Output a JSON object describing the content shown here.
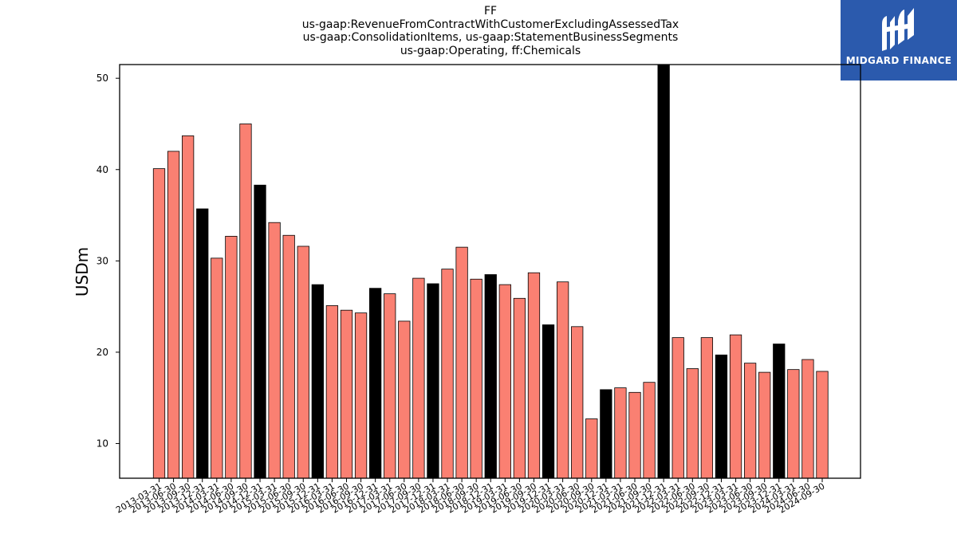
{
  "title_lines": [
    "FF",
    "us-gaap:RevenueFromContractWithCustomerExcludingAssessedTax",
    "us-gaap:ConsolidationItems, us-gaap:StatementBusinessSegments",
    "us-gaap:Operating, ff:Chemicals"
  ],
  "logo": {
    "text": "MIDGARD FINANCE",
    "background": "#2b5aad"
  },
  "colors": {
    "normal_bar": "#fa8072",
    "highlight_bar": "#000000",
    "bar_edge": "#000000"
  },
  "chart_data": {
    "type": "bar",
    "ylabel": "USDm",
    "xlabel": "",
    "ylim": [
      6.2,
      51.5
    ],
    "yticks": [
      10,
      20,
      30,
      40,
      50
    ],
    "grid": false,
    "categories": [
      "2013-03-31",
      "2013-06-30",
      "2013-09-30",
      "2013-12-31",
      "2014-03-31",
      "2014-06-30",
      "2014-09-30",
      "2014-12-31",
      "2015-03-31",
      "2015-06-30",
      "2015-09-30",
      "2015-12-31",
      "2016-03-31",
      "2016-06-30",
      "2016-09-30",
      "2016-12-31",
      "2017-03-31",
      "2017-06-30",
      "2017-09-30",
      "2017-12-31",
      "2018-03-31",
      "2018-06-30",
      "2018-09-30",
      "2018-12-31",
      "2019-03-31",
      "2019-06-30",
      "2019-09-30",
      "2019-12-31",
      "2020-03-31",
      "2020-06-30",
      "2020-09-30",
      "2020-12-31",
      "2021-03-31",
      "2021-06-30",
      "2021-09-30",
      "2021-12-31",
      "2022-03-31",
      "2022-06-30",
      "2022-09-30",
      "2022-12-31",
      "2023-03-31",
      "2023-06-30",
      "2023-09-30",
      "2023-12-31",
      "2024-03-31",
      "2024-06-30",
      "2024-09-30"
    ],
    "values": [
      40.1,
      42.0,
      43.7,
      35.7,
      30.3,
      32.7,
      45.0,
      38.3,
      34.2,
      32.8,
      31.6,
      27.4,
      25.1,
      24.6,
      24.3,
      27.0,
      26.4,
      23.4,
      28.1,
      27.5,
      29.1,
      31.5,
      28.0,
      28.5,
      27.4,
      25.9,
      28.7,
      23.0,
      27.7,
      22.8,
      12.7,
      15.9,
      16.1,
      15.6,
      16.7,
      52.5,
      21.6,
      18.2,
      21.6,
      19.7,
      21.9,
      18.8,
      17.8,
      20.9,
      18.1,
      19.2,
      17.9
    ],
    "highlighted": [
      false,
      false,
      false,
      true,
      false,
      false,
      false,
      true,
      false,
      false,
      false,
      true,
      false,
      false,
      false,
      true,
      false,
      false,
      false,
      true,
      false,
      false,
      false,
      true,
      false,
      false,
      false,
      true,
      false,
      false,
      false,
      true,
      false,
      false,
      false,
      true,
      false,
      false,
      false,
      true,
      false,
      false,
      false,
      true,
      false,
      false,
      false
    ]
  }
}
